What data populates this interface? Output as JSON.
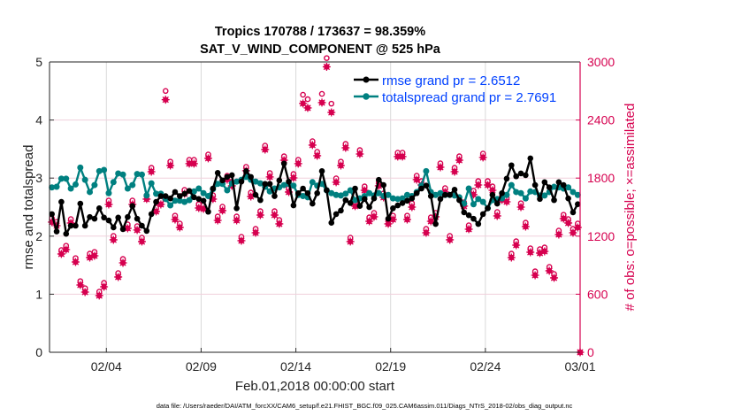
{
  "chart_data": {
    "type": "line",
    "title_line1": "Tropics 170788 / 173637 = 98.359%",
    "title_line2": "SAT_V_WIND_COMPONENT @ 525 hPa",
    "xlabel": "Feb.01,2018 00:00:00 start",
    "ylabel_left": "rmse and totalspread",
    "ylabel_right": "# of obs: o=possible; ×=assimilated",
    "footnote": "data file: /Users/raeder/DAI/ATM_forcXX/CAM6_setup/f.e21.FHIST_BGC.f09_025.CAM6assim.011/Diags_NTrS_2018-02/obs_diag_output.nc",
    "x_units": "days since Feb.01,2018 00:00:00",
    "xlim": [
      0,
      28
    ],
    "x_ticks": [
      {
        "value": 3,
        "label": "02/04"
      },
      {
        "value": 8,
        "label": "02/09"
      },
      {
        "value": 13,
        "label": "02/14"
      },
      {
        "value": 18,
        "label": "02/19"
      },
      {
        "value": 23,
        "label": "02/24"
      },
      {
        "value": 28,
        "label": "03/01"
      }
    ],
    "ylim_left": [
      0,
      5
    ],
    "y_ticks_left": [
      "0",
      "1",
      "2",
      "3",
      "4",
      "5"
    ],
    "ylim_right": [
      0,
      3000
    ],
    "y_ticks_right": [
      "0",
      "600",
      "1200",
      "1800",
      "2400",
      "3000"
    ],
    "x_start": 0.125,
    "x_step": 0.25,
    "colors": {
      "rmse": "#000000",
      "spread": "#008080",
      "obs": "#d6004f",
      "legend_text": "#0041ff",
      "vgrid": "#d9d9d9",
      "hgrid": "#f0d0dc"
    },
    "legend": {
      "placement": "top-right",
      "entries": [
        "rmse grand pr = 2.6512",
        "totalspread grand pr = 2.7691"
      ]
    },
    "series": [
      {
        "name": "rmse",
        "axis": "left",
        "values": [
          2.38,
          2.08,
          2.59,
          2.04,
          2.18,
          2.18,
          2.56,
          2.18,
          2.33,
          2.3,
          2.48,
          2.32,
          2.27,
          2.15,
          2.32,
          2.12,
          2.33,
          2.52,
          2.3,
          2.18,
          2.09,
          2.38,
          2.59,
          2.69,
          2.69,
          2.65,
          2.76,
          2.69,
          2.73,
          2.78,
          2.67,
          2.64,
          2.61,
          2.42,
          2.82,
          3.09,
          2.96,
          3.02,
          3.05,
          2.48,
          2.94,
          3.12,
          3.02,
          2.71,
          2.62,
          2.9,
          2.9,
          2.69,
          2.96,
          3.25,
          2.94,
          2.53,
          2.74,
          2.82,
          2.74,
          2.56,
          2.74,
          3.12,
          2.79,
          2.23,
          2.38,
          2.44,
          2.62,
          2.57,
          2.82,
          2.52,
          2.64,
          2.5,
          2.65,
          2.97,
          2.88,
          2.3,
          2.48,
          2.53,
          2.57,
          2.61,
          2.65,
          2.74,
          2.82,
          2.87,
          2.69,
          2.21,
          2.64,
          2.71,
          2.71,
          2.8,
          2.62,
          2.41,
          2.36,
          2.3,
          2.21,
          2.38,
          2.48,
          2.71,
          2.56,
          2.74,
          2.99,
          3.22,
          3.03,
          3.08,
          3.05,
          3.34,
          2.88,
          2.64,
          2.93,
          2.84,
          2.62,
          2.93,
          2.88,
          2.65,
          2.41,
          2.55
        ]
      },
      {
        "name": "totalspread",
        "axis": "left",
        "values": [
          2.84,
          2.85,
          2.99,
          2.99,
          2.82,
          2.89,
          3.18,
          2.97,
          2.76,
          2.88,
          3.12,
          3.14,
          2.74,
          2.93,
          3.08,
          3.06,
          2.82,
          2.88,
          3.07,
          3.06,
          2.7,
          2.91,
          2.73,
          2.73,
          2.64,
          2.53,
          2.61,
          2.61,
          2.59,
          2.62,
          2.77,
          2.82,
          2.74,
          2.69,
          2.81,
          2.9,
          2.9,
          2.79,
          2.91,
          2.94,
          2.97,
          3.02,
          2.97,
          2.94,
          2.91,
          2.85,
          2.77,
          2.82,
          2.84,
          2.88,
          2.9,
          2.87,
          2.71,
          2.69,
          2.67,
          2.93,
          2.87,
          2.9,
          2.79,
          2.74,
          2.71,
          2.7,
          2.73,
          2.79,
          2.62,
          2.65,
          2.69,
          2.74,
          2.7,
          2.74,
          2.69,
          2.71,
          2.65,
          2.64,
          2.65,
          2.71,
          2.69,
          2.76,
          2.87,
          3.12,
          2.76,
          2.71,
          2.74,
          2.71,
          2.71,
          2.7,
          2.67,
          2.56,
          2.82,
          2.55,
          2.64,
          2.59,
          2.48,
          2.62,
          2.64,
          2.65,
          2.71,
          2.88,
          2.76,
          2.74,
          2.65,
          2.77,
          2.76,
          2.7,
          2.7,
          2.76,
          2.85,
          2.84,
          2.82,
          2.84,
          2.76,
          2.71
        ]
      },
      {
        "name": "obs_assimilated",
        "axis": "right",
        "values": [
          1345,
          1308,
          1016,
          1061,
          1336,
          933,
          695,
          622,
          979,
          997,
          586,
          677,
          1528,
          1162,
          778,
          924,
          1281,
          1528,
          1263,
          1144,
          1583,
          1866,
          1455,
          1528,
          2610,
          1930,
          1372,
          1290,
          1638,
          1949,
          1949,
          1491,
          1482,
          2004,
          1583,
          1363,
          1464,
          1784,
          1720,
          1363,
          1153,
          1876,
          1610,
          1235,
          1418,
          2095,
          1812,
          1418,
          1327,
          1985,
          1656,
          1802,
          1949,
          2571,
          2525,
          2141,
          2031,
          2580,
          2950,
          2479,
          1757,
          1930,
          2113,
          1144,
          1510,
          2049,
          1674,
          1354,
          1400,
          1720,
          1601,
          1327,
          1372,
          2022,
          2022,
          1372,
          1500,
          1784,
          1729,
          1235,
          1354,
          1400,
          1912,
          1656,
          1162,
          1866,
          1985,
          1510,
          1272,
          1629,
          1729,
          2013,
          1729,
          1674,
          1409,
          1574,
          1555,
          979,
          1107,
          1500,
          1299,
          1034,
          796,
          1025,
          1043,
          842,
          769,
          1217,
          1381,
          1336,
          1235,
          1290,
          0
        ]
      },
      {
        "name": "obs_possible",
        "axis": "right",
        "values": [
          1385,
          1348,
          1056,
          1101,
          1376,
          973,
          735,
          662,
          1019,
          1037,
          626,
          717,
          1568,
          1202,
          818,
          964,
          1321,
          1568,
          1303,
          1184,
          1623,
          1906,
          1495,
          1568,
          2700,
          1970,
          1412,
          1330,
          1678,
          1989,
          1989,
          1531,
          1522,
          2044,
          1623,
          1403,
          1504,
          1824,
          1760,
          1403,
          1193,
          1916,
          1650,
          1275,
          1458,
          2135,
          1852,
          1458,
          1367,
          2025,
          1696,
          1842,
          1989,
          2661,
          2615,
          2181,
          2071,
          2670,
          3040,
          2569,
          1797,
          1970,
          2153,
          1184,
          1550,
          2089,
          1714,
          1394,
          1440,
          1760,
          1641,
          1367,
          1412,
          2062,
          2062,
          1412,
          1540,
          1824,
          1769,
          1275,
          1394,
          1440,
          1952,
          1696,
          1202,
          1906,
          2025,
          1550,
          1312,
          1669,
          1769,
          2053,
          1769,
          1714,
          1449,
          1614,
          1595,
          1019,
          1147,
          1540,
          1339,
          1074,
          836,
          1065,
          1083,
          882,
          809,
          1257,
          1421,
          1376,
          1275,
          1330,
          0
        ]
      }
    ]
  }
}
